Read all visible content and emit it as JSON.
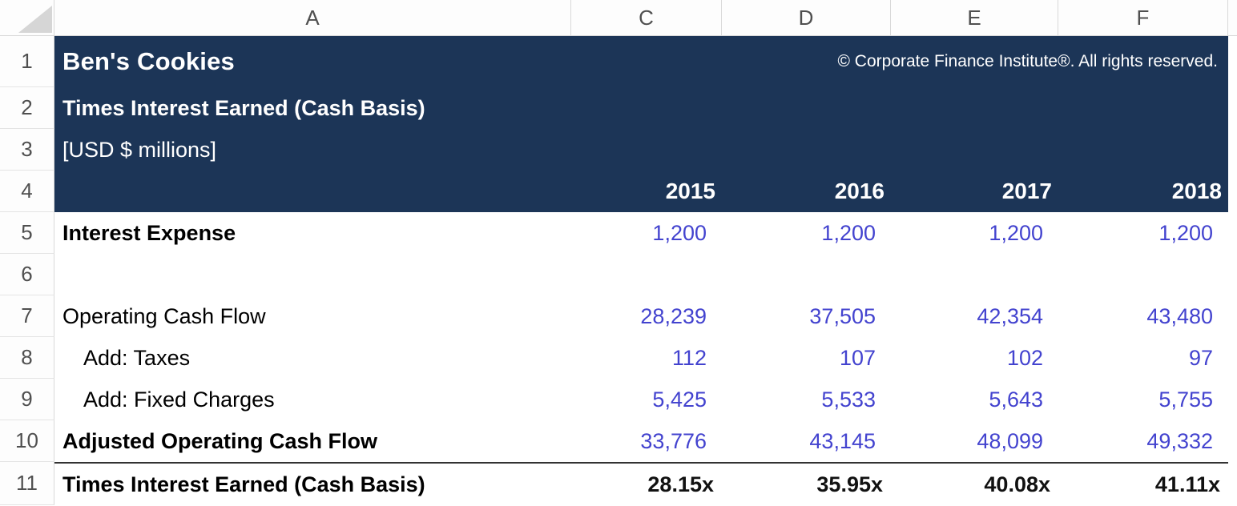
{
  "sheet": {
    "column_headers": [
      "A",
      "C",
      "D",
      "E",
      "F"
    ],
    "row_numbers": [
      "1",
      "2",
      "3",
      "4",
      "5",
      "6",
      "7",
      "8",
      "9",
      "10",
      "11"
    ]
  },
  "header_block": {
    "company": "Ben's Cookies",
    "copyright": "© Corporate Finance Institute®. All rights reserved.",
    "title": "Times Interest Earned (Cash Basis)",
    "units": "[USD $ millions]",
    "years": [
      "2015",
      "2016",
      "2017",
      "2018"
    ]
  },
  "table": {
    "rows": [
      {
        "label": "Interest Expense",
        "values": [
          "1,200",
          "1,200",
          "1,200",
          "1,200"
        ]
      },
      {
        "label": "",
        "values": [
          "",
          "",
          "",
          ""
        ]
      },
      {
        "label": "Operating Cash Flow",
        "values": [
          "28,239",
          "37,505",
          "42,354",
          "43,480"
        ]
      },
      {
        "label": "Add: Taxes",
        "values": [
          "112",
          "107",
          "102",
          "97"
        ]
      },
      {
        "label": "Add: Fixed Charges",
        "values": [
          "5,425",
          "5,533",
          "5,643",
          "5,755"
        ]
      },
      {
        "label": "Adjusted Operating Cash Flow",
        "values": [
          "33,776",
          "43,145",
          "48,099",
          "49,332"
        ]
      },
      {
        "label": "Times Interest Earned (Cash Basis)",
        "values": [
          "28.15x",
          "35.95x",
          "40.08x",
          "41.11x"
        ]
      }
    ]
  },
  "colors": {
    "navy": "#1C3557",
    "input_blue": "#4343CF",
    "rule": "#333333"
  }
}
